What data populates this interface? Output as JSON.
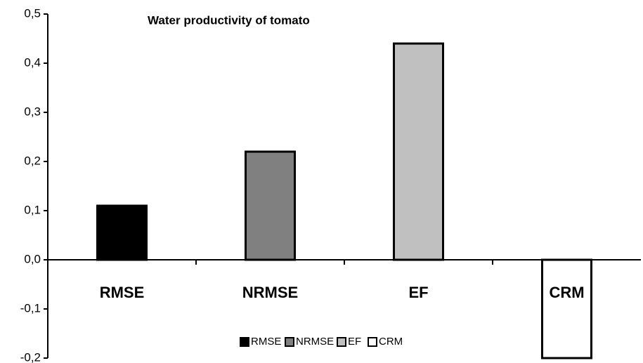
{
  "chart_data": {
    "type": "bar",
    "title": "Water productivity of tomato",
    "categories": [
      "RMSE",
      "NRMSE",
      "EF",
      "CRM"
    ],
    "values": [
      0.11,
      0.22,
      0.44,
      -0.2
    ],
    "colors": [
      "#000000",
      "#808080",
      "#c0c0c0",
      "#ffffff"
    ],
    "ylim": [
      -0.2,
      0.5
    ],
    "yticks": [
      {
        "value": -0.2,
        "label": "-0,2"
      },
      {
        "value": -0.1,
        "label": "-0,1"
      },
      {
        "value": 0,
        "label": "0,0"
      },
      {
        "value": 0.1,
        "label": "0,1"
      },
      {
        "value": 0.2,
        "label": "0,2"
      },
      {
        "value": 0.3,
        "label": "0,3"
      },
      {
        "value": 0.4,
        "label": "0,4"
      },
      {
        "value": 0.5,
        "label": "0,5"
      }
    ],
    "grid": false,
    "legend": "bottom"
  }
}
